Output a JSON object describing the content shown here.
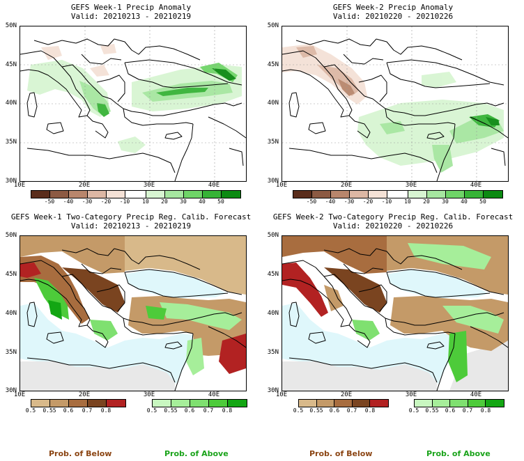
{
  "panels": [
    {
      "title": "GEFS Week-1 Precip Anomaly",
      "valid": "Valid: 20210213 - 20210219"
    },
    {
      "title": "GEFS Week-2 Precip Anomaly",
      "valid": "Valid: 20210220 - 20210226"
    },
    {
      "title": "GEFS Week-1 Two-Category Precip Reg. Calib. Forecast",
      "valid": "Valid: 20210213 - 20210219"
    },
    {
      "title": "GEFS Week-2 Two-Category Precip Reg. Calib. Forecast",
      "valid": "Valid: 20210220 - 20210226"
    }
  ],
  "axes": {
    "lat_labels": [
      "50N",
      "45N",
      "40N",
      "35N",
      "30N"
    ],
    "lon_labels": [
      "10E",
      "20E",
      "30E",
      "40E"
    ]
  },
  "anomaly_colorbar": {
    "labels": [
      "-50",
      "-40",
      "-30",
      "-20",
      "-10",
      "10",
      "20",
      "30",
      "40",
      "50"
    ],
    "colors": [
      "#5a2d1c",
      "#8c5a43",
      "#b8866c",
      "#dcb7a4",
      "#f4e1d6",
      "#ffffff",
      "#d8f5d2",
      "#a6e6a0",
      "#6fd468",
      "#36b336",
      "#0c8a12"
    ]
  },
  "prob_below_colorbar": {
    "labels": [
      "0.5",
      "0.55",
      "0.6",
      "0.7",
      "0.8"
    ],
    "colors": [
      "#d8b98a",
      "#c49a68",
      "#a86d3f",
      "#7a4420",
      "#b22222"
    ],
    "title": "Prob. of Below",
    "title_color": "#8b4513"
  },
  "prob_above_colorbar": {
    "labels": [
      "0.5",
      "0.55",
      "0.6",
      "0.7",
      "0.8"
    ],
    "colors": [
      "#c8f7c0",
      "#a6ee9a",
      "#7fe070",
      "#4dcb3a",
      "#13a613"
    ],
    "title": "Prob. of Above",
    "title_color": "#1aa31a"
  }
}
